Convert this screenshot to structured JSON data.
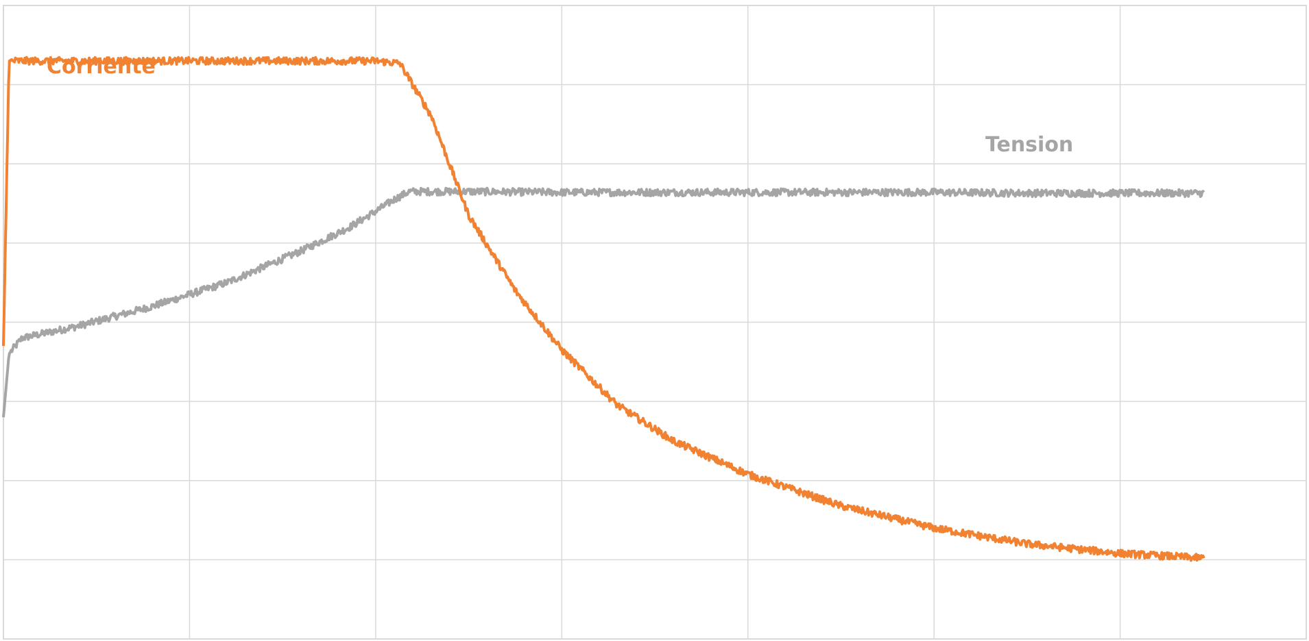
{
  "chart_data": {
    "type": "line",
    "title": "",
    "xlabel": "",
    "ylabel": "",
    "grid": true,
    "legend": "inline labels",
    "xlim": [
      0,
      7
    ],
    "ylim": [
      -1,
      7
    ],
    "x_gridlines": 7,
    "y_gridlines": 8,
    "colors": {
      "corriente": "#F08232",
      "tension": "#A5A5A5",
      "grid": "#D9D9D9"
    },
    "series": [
      {
        "name": "Corriente",
        "color": "#F08232",
        "points": [
          [
            0.0,
            2.7
          ],
          [
            0.03,
            6.3
          ],
          [
            0.5,
            6.3
          ],
          [
            1.0,
            6.3
          ],
          [
            1.5,
            6.3
          ],
          [
            2.0,
            6.3
          ],
          [
            2.13,
            6.27
          ],
          [
            2.3,
            5.6
          ],
          [
            2.5,
            4.35
          ],
          [
            2.75,
            3.4
          ],
          [
            3.0,
            2.65
          ],
          [
            3.3,
            1.95
          ],
          [
            3.6,
            1.5
          ],
          [
            4.0,
            1.08
          ],
          [
            4.5,
            0.68
          ],
          [
            5.0,
            0.4
          ],
          [
            5.5,
            0.2
          ],
          [
            6.0,
            0.08
          ],
          [
            6.45,
            0.02
          ]
        ]
      },
      {
        "name": "Tension",
        "color": "#A5A5A5",
        "points": [
          [
            0.0,
            1.8
          ],
          [
            0.03,
            2.6
          ],
          [
            0.1,
            2.8
          ],
          [
            0.4,
            2.95
          ],
          [
            0.8,
            3.2
          ],
          [
            1.2,
            3.5
          ],
          [
            1.6,
            3.9
          ],
          [
            1.86,
            4.2
          ],
          [
            2.0,
            4.4
          ],
          [
            2.1,
            4.55
          ],
          [
            2.18,
            4.65
          ],
          [
            2.5,
            4.65
          ],
          [
            3.0,
            4.64
          ],
          [
            4.0,
            4.64
          ],
          [
            5.0,
            4.64
          ],
          [
            5.5,
            4.63
          ],
          [
            6.0,
            4.63
          ],
          [
            6.45,
            4.63
          ]
        ]
      }
    ]
  }
}
